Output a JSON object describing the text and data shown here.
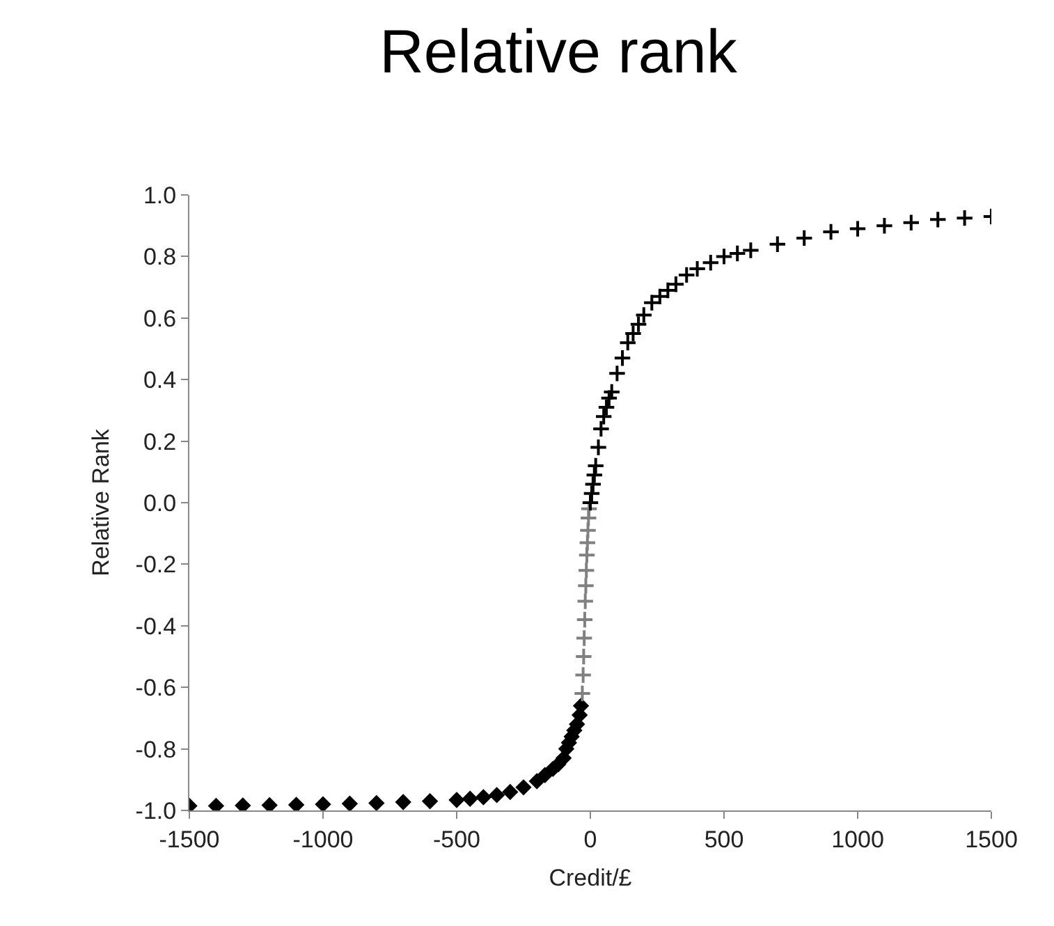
{
  "chart_data": {
    "type": "scatter",
    "title": "Relative rank",
    "xlabel": "Credit/£",
    "ylabel": "Relative Rank",
    "xlim": [
      -1500,
      1500
    ],
    "xticks": [
      -1500,
      -1000,
      -500,
      0,
      500,
      1000,
      1500
    ],
    "ylim": [
      -1,
      1
    ],
    "yticks": [
      {
        "value": -1,
        "label": "-1.0"
      },
      {
        "value": -0.8,
        "label": "-0.8"
      },
      {
        "value": -0.6,
        "label": "-0.6"
      },
      {
        "value": -0.4,
        "label": "-0.4"
      },
      {
        "value": -0.2,
        "label": "-0.2"
      },
      {
        "value": 0,
        "label": "0.0"
      },
      {
        "value": 0.2,
        "label": "0.2"
      },
      {
        "value": 0.4,
        "label": "0.4"
      },
      {
        "value": 0.6,
        "label": "0.6"
      },
      {
        "value": 0.8,
        "label": "0.8"
      },
      {
        "value": 1,
        "label": "1.0"
      }
    ],
    "grid": false,
    "series": [
      {
        "color": "#000000",
        "marker": "diamond",
        "x": [
          -1500,
          -1400,
          -1300,
          -1200,
          -1100,
          -1000,
          -900,
          -800,
          -700,
          -600,
          -500,
          -450,
          -400,
          -350,
          -300,
          -250,
          -200,
          -170,
          -140,
          -120,
          -100,
          -90,
          -80,
          -70,
          -60,
          -50,
          -40,
          -35
        ],
        "values": [
          -0.985,
          -0.985,
          -0.984,
          -0.983,
          -0.982,
          -0.98,
          -0.978,
          -0.976,
          -0.973,
          -0.97,
          -0.966,
          -0.962,
          -0.957,
          -0.95,
          -0.94,
          -0.925,
          -0.905,
          -0.885,
          -0.865,
          -0.85,
          -0.83,
          -0.8,
          -0.78,
          -0.76,
          -0.74,
          -0.72,
          -0.69,
          -0.66
        ]
      },
      {
        "color": "#808080",
        "marker": "cross",
        "x": [
          -30,
          -27,
          -25,
          -23,
          -21,
          -19,
          -17,
          -15,
          -13,
          -11,
          -9,
          -7,
          -5
        ],
        "values": [
          -0.62,
          -0.56,
          -0.5,
          -0.44,
          -0.38,
          -0.32,
          -0.27,
          -0.22,
          -0.17,
          -0.13,
          -0.09,
          -0.05,
          -0.02
        ]
      },
      {
        "color": "#000000",
        "marker": "cross",
        "x": [
          0,
          5,
          10,
          15,
          20,
          30,
          40,
          50,
          60,
          70,
          80,
          100,
          120,
          140,
          160,
          180,
          200,
          230,
          260,
          290,
          320,
          360,
          400,
          450,
          500,
          550,
          600,
          700,
          800,
          900,
          1000,
          1100,
          1200,
          1300,
          1400,
          1500
        ],
        "values": [
          0,
          0.03,
          0.06,
          0.09,
          0.12,
          0.18,
          0.24,
          0.28,
          0.31,
          0.34,
          0.36,
          0.42,
          0.47,
          0.52,
          0.55,
          0.58,
          0.61,
          0.65,
          0.67,
          0.69,
          0.71,
          0.74,
          0.76,
          0.78,
          0.8,
          0.81,
          0.82,
          0.84,
          0.86,
          0.88,
          0.89,
          0.9,
          0.91,
          0.92,
          0.925,
          0.93
        ]
      }
    ]
  }
}
